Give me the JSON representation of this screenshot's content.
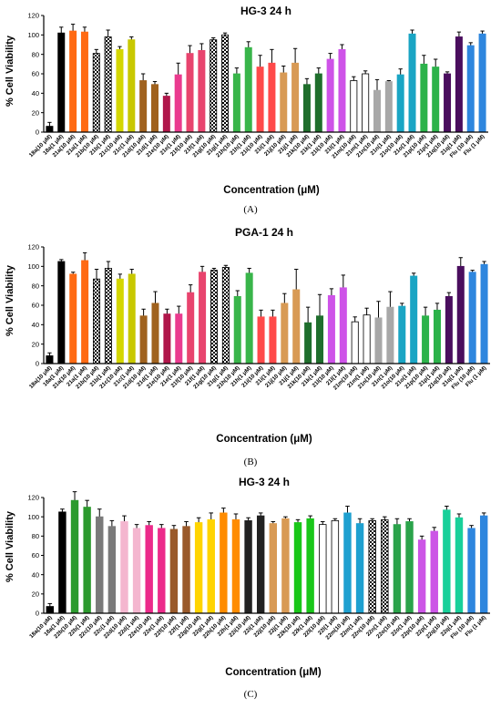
{
  "chart_data": [
    {
      "type": "bar",
      "panel_label": "(A)",
      "title": "HG-3 24 h",
      "ylabel": "% Cell Viability",
      "xlabel": "Concentration (μM)",
      "ylim": [
        0,
        120
      ],
      "yticks": [
        0,
        20,
        40,
        60,
        80,
        100,
        120
      ],
      "categories": [
        "18a(10 μM)",
        "18a(1 μM)",
        "21a(10 μM)",
        "21a(1 μM)",
        "21b(10 μM)",
        "21b(1 μM)",
        "21c(10 μM)",
        "21c(1 μM)",
        "21d(10 μM)",
        "21d(1 μM)",
        "21e(10 μM)",
        "21e(1 μM)",
        "21f(10 μM)",
        "21f(1 μM)",
        "21g(10 μM)",
        "21g(1 μM)",
        "21h(10 μM)",
        "21h(1 μM)",
        "21i(10 μM)",
        "21i(1 μM)",
        "21j(10 μM)",
        "21j(1 μM)",
        "21k(10 μM)",
        "21k(1 μM)",
        "21l(10 μM)",
        "21l(1 μM)",
        "21m(10 μM)",
        "21m(1 μM)",
        "21n(10 μM)",
        "21n(1 μM)",
        "21o(10 μM)",
        "21o(1 μM)",
        "21p(10 μM)",
        "21p(1 μM)",
        "21q(10 μM)",
        "21q(1 μM)",
        "Flu (10 μM)",
        "Flu (1 μM)"
      ],
      "values": [
        6,
        102,
        104,
        103,
        81,
        98,
        85,
        95,
        53,
        49,
        37,
        59,
        81,
        84,
        95,
        100,
        60,
        87,
        67,
        71,
        61,
        71,
        49,
        60,
        75,
        85,
        53,
        60,
        43,
        52,
        59,
        101,
        70,
        67,
        60,
        98,
        89,
        101
      ],
      "errors": [
        4,
        6,
        7,
        5,
        4,
        7,
        3,
        3,
        7,
        3,
        3,
        12,
        8,
        7,
        2,
        2,
        6,
        6,
        12,
        14,
        7,
        15,
        6,
        6,
        6,
        5,
        4,
        3,
        11,
        1,
        6,
        4,
        9,
        8,
        2,
        5,
        3,
        3
      ],
      "colors": [
        "#000000",
        "#000000",
        "#ff6a13",
        "#ff6a13",
        "#7ed321",
        "#cfe34a",
        "#d4d600",
        "#c8c800",
        "#a0621e",
        "#a0621e",
        "#b0174b",
        "#ea3b8f",
        "#e8446e",
        "#e8446e",
        "#ff2a2a",
        "#ff2a2a",
        "#39b54a",
        "#39b54a",
        "#ff4a4a",
        "#ff4a4a",
        "#d89a55",
        "#d89a55",
        "#1f6e2c",
        "#1f6e2c",
        "#ce53e8",
        "#ce53e8",
        "#ffffff",
        "#ffffff",
        "#a8a8a8",
        "#a8a8a8",
        "#1aa5c4",
        "#1aa5c4",
        "#2cb24a",
        "#2cb24a",
        "#4a0e5e",
        "#4a0e5e",
        "#2e86de",
        "#2e86de"
      ],
      "patterns": [
        "",
        "",
        "",
        "",
        "checker",
        "checker",
        "",
        "",
        "",
        "",
        "",
        "",
        "",
        "",
        "checker",
        "checker",
        "",
        "",
        "",
        "",
        "",
        "",
        "",
        "",
        "",
        "",
        "",
        "",
        "",
        "",
        "",
        "",
        "",
        "",
        "",
        "",
        "",
        ""
      ]
    },
    {
      "type": "bar",
      "panel_label": "(B)",
      "title": "PGA-1 24 h",
      "ylabel": "% Cell Viability",
      "xlabel": "Concentration (μM)",
      "ylim": [
        0,
        120
      ],
      "yticks": [
        0,
        20,
        40,
        60,
        80,
        100,
        120
      ],
      "categories": [
        "18a(10 μM)",
        "18a(1 μM)",
        "21a(10 μM)",
        "21a(1 μM)",
        "21b(10 μM)",
        "21b(1 μM)",
        "21c(10 μM)",
        "21c(1 μM)",
        "21d(10 μM)",
        "21d(1 μM)",
        "21e(10 μM)",
        "21e(1 μM)",
        "21f(10 μM)",
        "21f(1 μM)",
        "21g(10 μM)",
        "21g(1 μM)",
        "21h(10 μM)",
        "21h(1 μM)",
        "21i(10 μM)",
        "21i(1 μM)",
        "21j(10 μM)",
        "21j(1 μM)",
        "21k(10 μM)",
        "21k(1 μM)",
        "21l(10 μM)",
        "21l(1 μM)",
        "21m(10 μM)",
        "21m(1 μM)",
        "21n(10 μM)",
        "21n(1 μM)",
        "21o(10 μM)",
        "21o(1 μM)",
        "21p(10 μM)",
        "21p(1 μM)",
        "21q(10 μM)",
        "21q(1 μM)",
        "Flu (10 μM)",
        "Flu (1 μM)"
      ],
      "values": [
        8,
        105,
        92,
        106,
        87,
        98,
        87,
        92,
        49,
        62,
        51,
        51,
        73,
        94,
        96,
        99,
        69,
        93,
        48,
        48,
        62,
        76,
        42,
        49,
        70,
        78,
        43,
        50,
        47,
        58,
        59,
        90,
        49,
        55,
        69,
        100,
        94,
        102
      ],
      "errors": [
        3,
        2,
        2,
        8,
        10,
        7,
        5,
        5,
        7,
        12,
        5,
        8,
        8,
        6,
        2,
        2,
        6,
        5,
        7,
        7,
        10,
        21,
        16,
        22,
        7,
        13,
        5,
        7,
        17,
        16,
        3,
        3,
        9,
        7,
        4,
        9,
        2,
        3
      ],
      "colors": [
        "#000000",
        "#000000",
        "#ff6a13",
        "#ff6a13",
        "#7ed321",
        "#cfe34a",
        "#d4d600",
        "#c8c800",
        "#a0621e",
        "#a0621e",
        "#b0174b",
        "#ea3b8f",
        "#e8446e",
        "#e8446e",
        "#ff2a2a",
        "#ff2a2a",
        "#39b54a",
        "#39b54a",
        "#ff4a4a",
        "#ff4a4a",
        "#d89a55",
        "#d89a55",
        "#1f6e2c",
        "#1f6e2c",
        "#ce53e8",
        "#ce53e8",
        "#ffffff",
        "#ffffff",
        "#a8a8a8",
        "#a8a8a8",
        "#1aa5c4",
        "#1aa5c4",
        "#2cb24a",
        "#2cb24a",
        "#4a0e5e",
        "#4a0e5e",
        "#2e86de",
        "#2e86de"
      ],
      "patterns": [
        "",
        "",
        "",
        "",
        "checker",
        "checker",
        "",
        "",
        "",
        "",
        "",
        "",
        "",
        "",
        "checker",
        "checker",
        "",
        "",
        "",
        "",
        "",
        "",
        "",
        "",
        "",
        "",
        "",
        "",
        "",
        "",
        "",
        "",
        "",
        "",
        "",
        "",
        "",
        ""
      ]
    },
    {
      "type": "bar",
      "panel_label": "(C)",
      "title": "HG-3 24 h",
      "ylabel": "% Cell Viability",
      "xlabel": "Concentration (μM)",
      "ylim": [
        0,
        120
      ],
      "yticks": [
        0,
        20,
        40,
        60,
        80,
        100,
        120
      ],
      "categories": [
        "18a(10 μM)",
        "18a(1 μM)",
        "22b(10 μM)",
        "22b(1 μM)",
        "22c(10 μM)",
        "22c(1 μM)",
        "22d(10 μM)",
        "22d(1 μM)",
        "22e(10 μM)",
        "22e(1 μM)",
        "22f(10 μM)",
        "22f(1 μM)",
        "22g(10 μM)",
        "22g(1 μM)",
        "22h(10 μM)",
        "22h(1 μM)",
        "22i(10 μM)",
        "22i(1 μM)",
        "22j(10 μM)",
        "22j(1 μM)",
        "22k(10 μM)",
        "22k(1 μM)",
        "22l(10 μM)",
        "22l(1 μM)",
        "22m(10 μM)",
        "22m(1 μM)",
        "22n(10 μM)",
        "22n(1 μM)",
        "22o(10 μM)",
        "22o(1 μM)",
        "22p(10 μM)",
        "22p(1 μM)",
        "22q(10 μM)",
        "22q(1 μM)",
        "Flu (10 μM)",
        "Flu (1 μM)"
      ],
      "values": [
        7,
        105,
        117,
        110,
        100,
        90,
        95,
        88,
        91,
        88,
        87,
        90,
        94,
        97,
        104,
        97,
        96,
        101,
        93,
        98,
        94,
        98,
        92,
        96,
        104,
        93,
        96,
        97,
        92,
        95,
        76,
        85,
        107,
        99,
        88,
        101
      ],
      "errors": [
        3,
        3,
        9,
        7,
        8,
        6,
        6,
        4,
        4,
        4,
        4,
        5,
        5,
        7,
        5,
        6,
        3,
        3,
        2,
        2,
        3,
        3,
        3,
        2,
        7,
        5,
        2,
        3,
        6,
        3,
        4,
        4,
        4,
        4,
        3,
        3
      ],
      "colors": [
        "#000000",
        "#000000",
        "#2c9a2e",
        "#2c9a2e",
        "#7a7a7a",
        "#7a7a7a",
        "#f4b6cf",
        "#f4b6cf",
        "#ec2a8a",
        "#ec2a8a",
        "#9a5a2b",
        "#9a5a2b",
        "#ffd400",
        "#ffd400",
        "#ff8c00",
        "#ff8c00",
        "#222222",
        "#222222",
        "#d89a55",
        "#d89a55",
        "#19c719",
        "#19c719",
        "#ffffff",
        "#ffffff",
        "#1ea0d0",
        "#1ea0d0",
        "#a0a0a0",
        "#a0a0a0",
        "#2ba34b",
        "#2ba34b",
        "#cc55e6",
        "#cc55e6",
        "#18d09a",
        "#18d09a",
        "#2e86de",
        "#2e86de"
      ],
      "patterns": [
        "",
        "",
        "",
        "",
        "",
        "",
        "",
        "",
        "",
        "",
        "",
        "",
        "",
        "",
        "",
        "",
        "",
        "",
        "",
        "",
        "",
        "",
        "",
        "",
        "",
        "",
        "checker",
        "checker",
        "",
        "",
        "",
        "",
        "",
        "",
        "",
        ""
      ]
    }
  ]
}
